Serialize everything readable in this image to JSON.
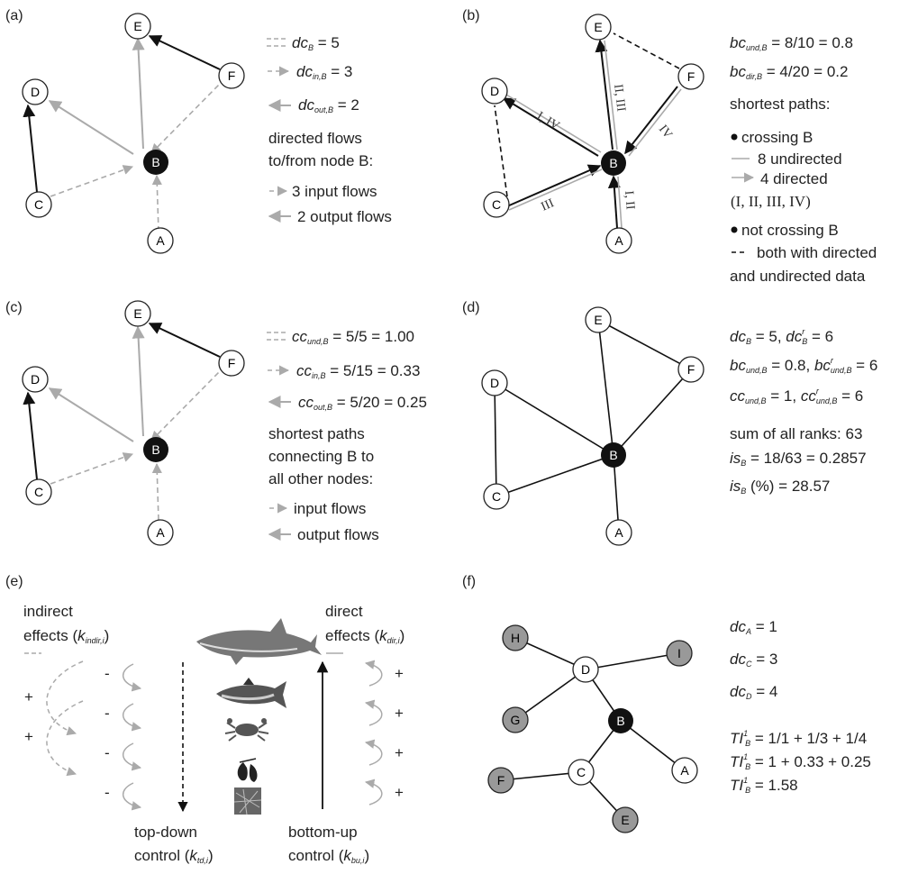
{
  "panel_labels": {
    "a": "(a)",
    "b": "(b)",
    "c": "(c)",
    "d": "(d)",
    "e": "(e)",
    "f": "(f)"
  },
  "nodes": {
    "A": "A",
    "B": "B",
    "C": "C",
    "D": "D",
    "E": "E",
    "F": "F",
    "G": "G",
    "H": "H",
    "I": "I"
  },
  "panel_a": {
    "dc_sym": "dc",
    "dc_sub": "B",
    "dc_val": " = 5",
    "dcin_sym": "dc",
    "dcin_sub": "in,B",
    "dcin_val": " = 3",
    "dcout_sym": "dc",
    "dcout_sub": "out,B",
    "dcout_val": " = 2",
    "line1": "directed flows",
    "line2": "to/from node B:",
    "input": "3 input flows",
    "output": "2 output flows"
  },
  "panel_b": {
    "bcund_sym": "bc",
    "bcund_sub": "und,B",
    "bcund_val": " = 8/10 = 0.8",
    "bcdir_sym": "bc",
    "bcdir_sub": "dir,B",
    "bcdir_val": " = 4/20 = 0.2",
    "shortest": "shortest paths:",
    "crossing": "crossing B",
    "undirected": "8 undirected",
    "directed": "4 directed",
    "roman": "(I, II, III, IV)",
    "notcrossing": "not crossing B",
    "both1": "both with directed",
    "both2": "and undirected data",
    "edge_BD": "I, IV",
    "edge_BE": "II, III",
    "edge_BF": "IV",
    "edge_CB": "III",
    "edge_AB": "I, II"
  },
  "panel_c": {
    "ccund_sym": "cc",
    "ccund_sub": "und,B",
    "ccund_val": " = 5/5 = 1.00",
    "ccin_sym": "cc",
    "ccin_sub": "in,B",
    "ccin_val": " = 5/15 = 0.33",
    "ccout_sym": "cc",
    "ccout_sub": "out,B",
    "ccout_val": " = 5/20 = 0.25",
    "l1": "shortest paths",
    "l2": "connecting B to",
    "l3": "all other nodes:",
    "input": "input flows",
    "output": "output flows"
  },
  "panel_d": {
    "r1a": "dc",
    "r1a_sub": "B",
    "r1b": " = 5, ",
    "r1c": "dc",
    "r1c_sup": "r",
    "r1c_sub": "B",
    "r1d": " = 6",
    "r2a": "bc",
    "r2a_sub": "und,B",
    "r2b": " = 0.8, ",
    "r2c": "bc",
    "r2c_sup": "r",
    "r2c_sub": "und,B",
    "r2d": " = 6",
    "r3a": "cc",
    "r3a_sub": "und,B",
    "r3b": " = 1, ",
    "r3c": "cc",
    "r3c_sup": "r",
    "r3c_sub": "und,B",
    "r3d": " = 6",
    "sum": "sum of all ranks: 63",
    "is_sym": "is",
    "is_sub": "B",
    "is_val": " = 18/63 = 0.2857",
    "isp_sym": "is",
    "isp_sub": "B",
    "isp_val": " (%) = 28.57"
  },
  "panel_e": {
    "indirect1": "indirect",
    "indirect2": "effects (",
    "k_ind": "k",
    "k_ind_sub": "indir,i",
    "close": ")",
    "direct1": "direct",
    "direct2": "effects (",
    "k_dir": "k",
    "k_dir_sub": "dir,i",
    "minus": "-",
    "plus": "+",
    "topdown1": "top-down",
    "topdown2": "control (",
    "k_td": "k",
    "k_td_sub": "td,i",
    "bottomup1": "bottom-up",
    "bottomup2": "control (",
    "k_bu": "k",
    "k_bu_sub": "bu,i"
  },
  "panel_f": {
    "dcA_sym": "dc",
    "dcA_sub": "A",
    "dcA_val": " = 1",
    "dcC_sym": "dc",
    "dcC_sub": "C",
    "dcC_val": " = 3",
    "dcD_sym": "dc",
    "dcD_sub": "D",
    "dcD_val": " = 4",
    "ti_sym": "TI",
    "ti_sup": "1",
    "ti_sub": "B",
    "ti1": " = 1/1 + 1/3 + 1/4",
    "ti2": " = 1 + 0.33 + 0.25",
    "ti3": " = 1.58"
  }
}
